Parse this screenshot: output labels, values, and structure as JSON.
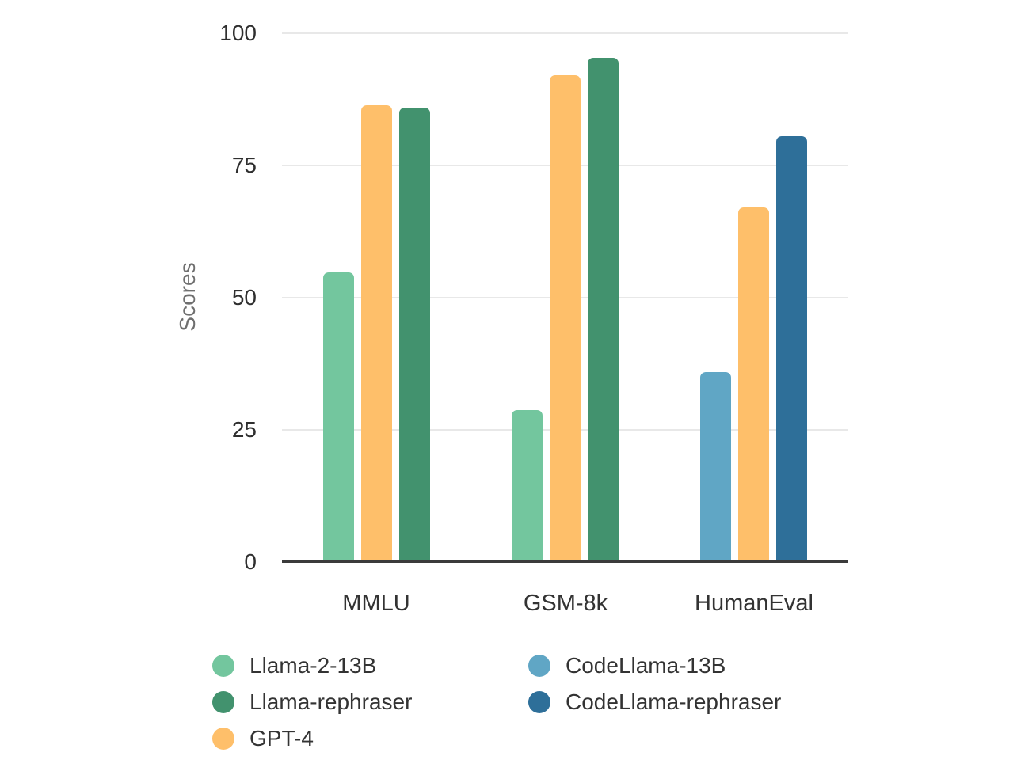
{
  "chart_data": {
    "type": "bar",
    "title": "",
    "xlabel": "",
    "ylabel": "Scores",
    "ylim": [
      0,
      100
    ],
    "yticks": [
      0,
      25,
      50,
      75,
      100
    ],
    "grid": true,
    "categories": [
      "MMLU",
      "GSM-8k",
      "HumanEval"
    ],
    "series": [
      {
        "name": "Llama-2-13B",
        "color": "#73c69e",
        "values": [
          54.8,
          28.7,
          null
        ]
      },
      {
        "name": "Llama-rephraser",
        "color": "#42926e",
        "values": [
          85.9,
          95.3,
          null
        ]
      },
      {
        "name": "GPT-4",
        "color": "#febf6a",
        "values": [
          86.4,
          92.0,
          67.0
        ]
      },
      {
        "name": "CodeLlama-13B",
        "color": "#60a6c5",
        "values": [
          null,
          null,
          36.0
        ]
      },
      {
        "name": "CodeLlama-rephraser",
        "color": "#2e6f99",
        "values": [
          null,
          null,
          80.5
        ]
      }
    ],
    "bar_order_per_category": [
      [
        "Llama-2-13B",
        "GPT-4",
        "Llama-rephraser"
      ],
      [
        "Llama-2-13B",
        "GPT-4",
        "Llama-rephraser"
      ],
      [
        "CodeLlama-13B",
        "GPT-4",
        "CodeLlama-rephraser"
      ]
    ],
    "legend": {
      "position": "bottom",
      "columns": [
        [
          "Llama-2-13B",
          "Llama-rephraser",
          "GPT-4"
        ],
        [
          "CodeLlama-13B",
          "CodeLlama-rephraser"
        ]
      ]
    },
    "colors": {
      "gridline": "#e8e8e8",
      "axis_line": "#3b3b3b",
      "tick_text": "#2f2f2f",
      "category_text": "#333333",
      "ylabel_text": "#6f6f6f",
      "legend_text": "#333333",
      "background": "#ffffff"
    }
  }
}
